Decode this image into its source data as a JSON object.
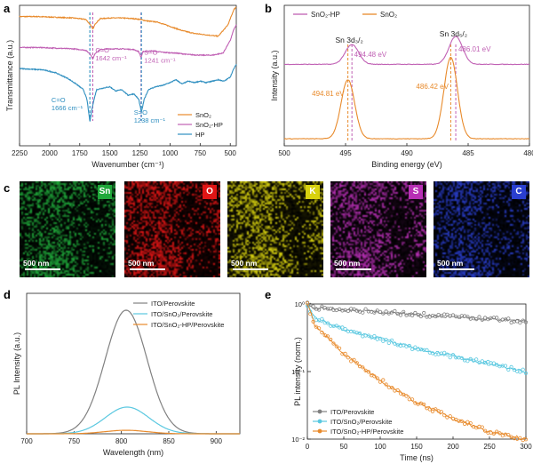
{
  "panel_labels": [
    "a",
    "b",
    "c",
    "d",
    "e"
  ],
  "chart_data": [
    {
      "panel": "a",
      "type": "line",
      "xlabel": "Wavenumber (cm⁻¹)",
      "ylabel": "Transmittance (a.u.)",
      "xlim": [
        2250,
        450
      ],
      "x_ticks": [
        "2250",
        "2000",
        "1750",
        "1500",
        "1250",
        "1000",
        "750",
        "500"
      ],
      "x_tick_values": [
        2250,
        2000,
        1750,
        1500,
        1250,
        1000,
        750,
        500
      ],
      "series": [
        {
          "name": "SnO₂",
          "color": "#e88a2b",
          "x": [
            2250,
            2100,
            1950,
            1800,
            1700,
            1660,
            1642,
            1620,
            1580,
            1500,
            1400,
            1300,
            1250,
            1200,
            1100,
            1000,
            900,
            800,
            700,
            600,
            520,
            470,
            450
          ],
          "y": [
            0.92,
            0.92,
            0.915,
            0.91,
            0.9,
            0.86,
            0.83,
            0.87,
            0.905,
            0.91,
            0.91,
            0.905,
            0.9,
            0.89,
            0.88,
            0.85,
            0.82,
            0.8,
            0.79,
            0.78,
            0.86,
            0.97,
            0.99
          ]
        },
        {
          "name": "SnO₂-HP",
          "color": "#c060b4",
          "x": [
            2250,
            2100,
            1950,
            1800,
            1700,
            1660,
            1642,
            1620,
            1580,
            1500,
            1400,
            1300,
            1260,
            1241,
            1225,
            1150,
            1050,
            950,
            850,
            750,
            650,
            560,
            500,
            470,
            450
          ],
          "y": [
            0.7,
            0.7,
            0.695,
            0.69,
            0.68,
            0.65,
            0.62,
            0.66,
            0.685,
            0.69,
            0.69,
            0.685,
            0.67,
            0.63,
            0.67,
            0.675,
            0.665,
            0.66,
            0.65,
            0.645,
            0.645,
            0.66,
            0.75,
            0.83,
            0.86
          ]
        },
        {
          "name": "HP",
          "color": "#2f8fc0",
          "x": [
            2250,
            2150,
            2050,
            1950,
            1850,
            1780,
            1720,
            1690,
            1666,
            1640,
            1610,
            1560,
            1500,
            1450,
            1400,
            1350,
            1300,
            1260,
            1238,
            1215,
            1180,
            1120,
            1060,
            1000,
            950,
            900,
            850,
            800,
            750,
            700,
            650,
            600,
            550,
            500,
            470,
            450
          ],
          "y": [
            0.55,
            0.545,
            0.54,
            0.52,
            0.48,
            0.44,
            0.4,
            0.33,
            0.17,
            0.3,
            0.4,
            0.41,
            0.42,
            0.39,
            0.4,
            0.36,
            0.37,
            0.33,
            0.24,
            0.33,
            0.4,
            0.42,
            0.43,
            0.45,
            0.47,
            0.44,
            0.46,
            0.45,
            0.46,
            0.45,
            0.46,
            0.47,
            0.46,
            0.49,
            0.55,
            0.58
          ]
        }
      ],
      "annotations": [
        {
          "text": "C=O",
          "sub": "1642 cm⁻¹",
          "color": "#c060b4",
          "x": 1642
        },
        {
          "text": "S=O",
          "sub": "1241 cm⁻¹",
          "color": "#c060b4",
          "x": 1241
        },
        {
          "text": "C=O",
          "sub": "1666 cm⁻¹",
          "color": "#2f8fc0",
          "x": 1666
        },
        {
          "text": "S=O",
          "sub": "1238 cm⁻¹",
          "color": "#2f8fc0",
          "x": 1238
        }
      ],
      "legend_position": "bottom-right",
      "legend": [
        "SnO₂",
        "SnO₂-HP",
        "HP"
      ]
    },
    {
      "panel": "b",
      "type": "line",
      "xlabel": "Binding energy (eV)",
      "ylabel": "Intensity (a.u.)",
      "xlim": [
        500,
        480
      ],
      "x_ticks": [
        "500",
        "495",
        "490",
        "485",
        "480"
      ],
      "x_tick_values": [
        500,
        495,
        490,
        485,
        480
      ],
      "series": [
        {
          "name": "SnO₂-HP",
          "color": "#c060b4",
          "peaks": [
            494.48,
            486.01
          ],
          "baseline": 0.58,
          "heights": [
            0.14,
            0.2
          ],
          "width": 0.55
        },
        {
          "name": "SnO₂",
          "color": "#e88a2b",
          "peaks": [
            494.81,
            486.42
          ],
          "baseline": 0.05,
          "heights": [
            0.42,
            0.58
          ],
          "width": 0.55
        }
      ],
      "peak_labels": [
        {
          "text": "494.48 eV",
          "color": "#c060b4",
          "x": 494.48
        },
        {
          "text": "486.01 eV",
          "color": "#c060b4",
          "x": 486.01
        },
        {
          "text": "494.81 eV",
          "color": "#e88a2b",
          "x": 494.81
        },
        {
          "text": "486.42 eV",
          "color": "#e88a2b",
          "x": 486.42
        }
      ],
      "orbital_labels": [
        "Sn 3d₃/₂",
        "Sn 3d₅/₂"
      ],
      "legend_position": "top-left",
      "legend": [
        "SnO₂-HP",
        "SnO₂"
      ]
    },
    {
      "panel": "d",
      "type": "line",
      "xlabel": "Wavelength (nm)",
      "ylabel": "PL Intensity (a.u.)",
      "xlim": [
        700,
        925
      ],
      "x_ticks": [
        "700",
        "750",
        "800",
        "850",
        "900"
      ],
      "x_tick_values": [
        700,
        750,
        800,
        850,
        900
      ],
      "series": [
        {
          "name": "ITO/Perovskite",
          "color": "#808080",
          "center": 805,
          "height": 0.88,
          "sigma": 22
        },
        {
          "name": "ITO/SnO₂/Perovskite",
          "color": "#5ac8e0",
          "center": 806,
          "height": 0.19,
          "sigma": 23
        },
        {
          "name": "ITO/SnO₂-HP/Perovskite",
          "color": "#e88a2b",
          "center": 805,
          "height": 0.025,
          "sigma": 22
        }
      ],
      "legend_position": "top-right",
      "legend": [
        "ITO/Perovskite",
        "ITO/SnO₂/Perovskite",
        "ITO/SnO₂-HP/Perovskite"
      ]
    },
    {
      "panel": "e",
      "type": "scatter",
      "xlabel": "Time (ns)",
      "ylabel": "PL intensity (norm.)",
      "xlim": [
        0,
        300
      ],
      "ylim": [
        0.01,
        1
      ],
      "yscale": "log",
      "x_ticks": [
        "0",
        "50",
        "100",
        "150",
        "200",
        "250",
        "300"
      ],
      "x_tick_values": [
        0,
        50,
        100,
        150,
        200,
        250,
        300
      ],
      "y_ticks": [
        "10⁰",
        "10⁻¹",
        "10⁻²"
      ],
      "y_tick_values": [
        1,
        0.1,
        0.01
      ],
      "series": [
        {
          "name": "ITO/Perovskite",
          "color": "#808080",
          "decay": [
            [
              0,
              1.0
            ],
            [
              10,
              0.88
            ],
            [
              300,
              0.55
            ]
          ]
        },
        {
          "name": "ITO/SnO₂/Perovskite",
          "color": "#5ac8e0",
          "decay": [
            [
              0,
              1.0
            ],
            [
              10,
              0.62
            ],
            [
              50,
              0.42
            ],
            [
              150,
              0.22
            ],
            [
              300,
              0.1
            ]
          ]
        },
        {
          "name": "ITO/SnO₂-HP/Perovskite",
          "color": "#e88a2b",
          "decay": [
            [
              0,
              1.0
            ],
            [
              10,
              0.5
            ],
            [
              50,
              0.18
            ],
            [
              100,
              0.075
            ],
            [
              150,
              0.035
            ],
            [
              200,
              0.02
            ],
            [
              250,
              0.013
            ],
            [
              300,
              0.01
            ]
          ]
        }
      ],
      "legend_position": "bottom-left",
      "legend": [
        "ITO/Perovskite",
        "ITO/SnO₂/Perovskite",
        "ITO/SnO₂-HP/Perovskite"
      ]
    }
  ],
  "eds_maps": {
    "scale_label": "500 nm",
    "tiles": [
      {
        "element": "Sn",
        "color": "#1fa83a"
      },
      {
        "element": "O",
        "color": "#e01515"
      },
      {
        "element": "K",
        "color": "#d8d20f"
      },
      {
        "element": "S",
        "color": "#b82fb5"
      },
      {
        "element": "C",
        "color": "#2a3fd0"
      }
    ]
  }
}
